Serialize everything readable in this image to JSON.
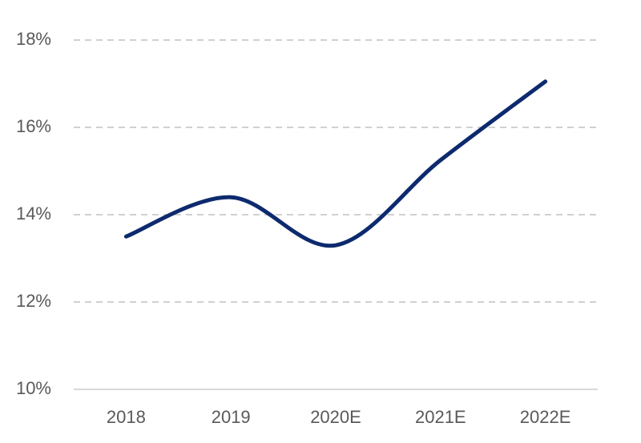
{
  "chart_data": {
    "type": "line",
    "categories": [
      "2018",
      "2019",
      "2020E",
      "2021E",
      "2022E"
    ],
    "values": [
      13.5,
      14.4,
      13.3,
      15.25,
      17.05
    ],
    "color": "#0d2a6e",
    "ylim": [
      10,
      18
    ],
    "yticks": [
      {
        "value": 10,
        "label": "10%"
      },
      {
        "value": 12,
        "label": "12%"
      },
      {
        "value": 14,
        "label": "14%"
      },
      {
        "value": 16,
        "label": "16%"
      },
      {
        "value": 18,
        "label": "18%"
      }
    ],
    "grid": true
  }
}
